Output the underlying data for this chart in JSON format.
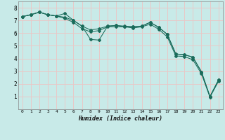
{
  "xlabel": "Humidex (Indice chaleur)",
  "background_color": "#c8eae8",
  "grid_color": "#e8c8c8",
  "line_color": "#1a6b5a",
  "xlim": [
    -0.5,
    23.5
  ],
  "ylim": [
    0,
    8.5
  ],
  "xticks": [
    0,
    1,
    2,
    3,
    4,
    5,
    6,
    7,
    8,
    9,
    10,
    11,
    12,
    13,
    14,
    15,
    16,
    17,
    18,
    19,
    20,
    21,
    22,
    23
  ],
  "yticks": [
    1,
    2,
    3,
    4,
    5,
    6,
    7,
    8
  ],
  "series1_x": [
    0,
    1,
    2,
    3,
    4,
    5,
    6,
    7,
    8,
    9,
    10,
    11,
    12,
    13,
    14,
    15,
    16,
    17,
    18,
    19,
    20,
    21,
    22,
    23
  ],
  "series1_y": [
    7.3,
    7.45,
    7.65,
    7.45,
    7.35,
    7.25,
    7.0,
    6.55,
    5.5,
    5.45,
    6.55,
    6.6,
    6.5,
    6.5,
    6.55,
    6.85,
    6.45,
    5.9,
    4.35,
    4.3,
    4.1,
    2.95,
    1.0,
    2.3
  ],
  "series2_x": [
    0,
    1,
    2,
    3,
    4,
    5,
    6,
    7,
    8,
    9,
    10,
    11,
    12,
    13,
    14,
    15,
    16,
    17,
    18,
    19,
    20,
    21,
    22,
    23
  ],
  "series2_y": [
    7.3,
    7.45,
    7.65,
    7.45,
    7.35,
    7.55,
    7.0,
    6.55,
    6.25,
    6.35,
    6.55,
    6.6,
    6.55,
    6.5,
    6.55,
    6.85,
    6.45,
    5.9,
    4.35,
    4.3,
    4.1,
    2.95,
    1.0,
    2.3
  ],
  "series3_x": [
    0,
    1,
    2,
    3,
    4,
    5,
    6,
    7,
    8,
    9,
    10,
    11,
    12,
    13,
    14,
    15,
    16,
    17,
    18,
    19,
    20,
    21,
    22,
    23
  ],
  "series3_y": [
    7.3,
    7.45,
    7.65,
    7.45,
    7.35,
    7.15,
    6.85,
    6.35,
    6.1,
    6.2,
    6.5,
    6.5,
    6.5,
    6.4,
    6.5,
    6.7,
    6.3,
    5.7,
    4.2,
    4.15,
    3.9,
    2.8,
    0.95,
    2.2
  ]
}
